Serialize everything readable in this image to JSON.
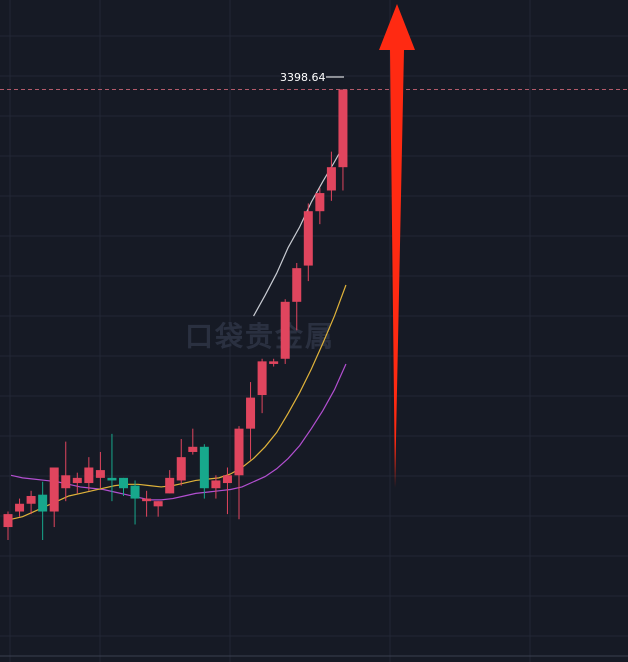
{
  "colors": {
    "background": "#161a25",
    "grid": "#222735",
    "up": "#e0455e",
    "down": "#17a88c",
    "ma_white": "#c9ccd3",
    "ma_yellow": "#e0b33a",
    "ma_purple": "#b24fd0",
    "price_line": "#b35a6a",
    "arrow": "#ff2a12"
  },
  "watermark": "口袋贵金属",
  "chart_data": {
    "type": "candlestick",
    "price_labels": [
      "3398.64"
    ],
    "max_price": 3398.64,
    "candles": [
      {
        "o": 1.0,
        "h": 2.2,
        "l": 0.0,
        "c": 2.0
      },
      {
        "o": 2.2,
        "h": 3.2,
        "l": 1.8,
        "c": 2.8
      },
      {
        "o": 2.8,
        "h": 3.8,
        "l": 2.0,
        "c": 3.4
      },
      {
        "o": 3.5,
        "h": 4.5,
        "l": 0.0,
        "c": 2.2
      },
      {
        "o": 2.2,
        "h": 5.6,
        "l": 1.0,
        "c": 5.6
      },
      {
        "o": 4.0,
        "h": 7.6,
        "l": 3.0,
        "c": 5.0
      },
      {
        "o": 4.4,
        "h": 5.2,
        "l": 3.6,
        "c": 4.8
      },
      {
        "o": 4.4,
        "h": 6.4,
        "l": 3.8,
        "c": 5.6
      },
      {
        "o": 4.8,
        "h": 6.8,
        "l": 4.0,
        "c": 5.4
      },
      {
        "o": 4.8,
        "h": 8.2,
        "l": 3.0,
        "c": 4.6
      },
      {
        "o": 4.8,
        "h": 4.8,
        "l": 3.4,
        "c": 4.0
      },
      {
        "o": 4.2,
        "h": 4.6,
        "l": 1.2,
        "c": 3.2
      },
      {
        "o": 3.0,
        "h": 3.8,
        "l": 1.8,
        "c": 3.2
      },
      {
        "o": 2.6,
        "h": 3.0,
        "l": 1.8,
        "c": 3.0
      },
      {
        "o": 3.6,
        "h": 5.4,
        "l": 3.6,
        "c": 4.8
      },
      {
        "o": 4.6,
        "h": 7.8,
        "l": 4.2,
        "c": 6.4
      },
      {
        "o": 6.8,
        "h": 8.6,
        "l": 6.6,
        "c": 7.2
      },
      {
        "o": 7.2,
        "h": 7.4,
        "l": 3.2,
        "c": 4.0
      },
      {
        "o": 4.0,
        "h": 5.0,
        "l": 3.2,
        "c": 4.6
      },
      {
        "o": 4.4,
        "h": 5.6,
        "l": 2.0,
        "c": 5.0
      },
      {
        "o": 5.0,
        "h": 8.8,
        "l": 1.6,
        "c": 8.6
      },
      {
        "o": 8.6,
        "h": 12.2,
        "l": 6.2,
        "c": 11.0
      },
      {
        "o": 11.2,
        "h": 14.0,
        "l": 9.8,
        "c": 13.8
      },
      {
        "o": 13.6,
        "h": 14.0,
        "l": 13.4,
        "c": 13.8
      },
      {
        "o": 14.0,
        "h": 18.6,
        "l": 13.6,
        "c": 18.4
      },
      {
        "o": 18.4,
        "h": 21.4,
        "l": 16.2,
        "c": 21.0
      },
      {
        "o": 21.2,
        "h": 26.0,
        "l": 20.0,
        "c": 25.4
      },
      {
        "o": 25.4,
        "h": 27.2,
        "l": 24.4,
        "c": 26.8
      },
      {
        "o": 27.0,
        "h": 30.0,
        "l": 26.2,
        "c": 28.8
      },
      {
        "o": 28.8,
        "h": 34.8,
        "l": 27.0,
        "c": 34.8
      }
    ],
    "ma_white": [
      null,
      null,
      null,
      null,
      null,
      null,
      null,
      null,
      null,
      null,
      null,
      null,
      null,
      null,
      null,
      null,
      null,
      null,
      null,
      null,
      null,
      17.3,
      18.9,
      20.6,
      22.6,
      24.2,
      26.1,
      27.7,
      29.2,
      30.8
    ],
    "ma_yellow": [
      1.6,
      1.8,
      2.2,
      2.6,
      3.0,
      3.4,
      3.6,
      3.8,
      4.0,
      4.2,
      4.3,
      4.3,
      4.2,
      4.1,
      4.2,
      4.4,
      4.6,
      4.7,
      4.8,
      5.1,
      5.6,
      6.3,
      7.2,
      8.3,
      9.8,
      11.4,
      13.2,
      15.2,
      17.3,
      19.7
    ],
    "ma_purple": [
      5.0,
      4.8,
      4.7,
      4.6,
      4.5,
      4.3,
      4.1,
      4.0,
      3.9,
      3.7,
      3.5,
      3.3,
      3.1,
      3.1,
      3.2,
      3.4,
      3.6,
      3.7,
      3.8,
      3.9,
      4.1,
      4.5,
      4.9,
      5.5,
      6.3,
      7.3,
      8.6,
      10.0,
      11.6,
      13.6
    ]
  }
}
